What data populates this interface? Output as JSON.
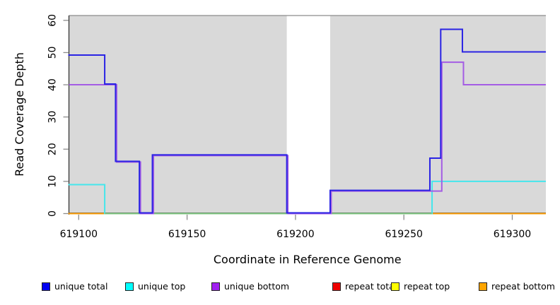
{
  "chart_data": {
    "type": "line",
    "subtype": "step",
    "title": "",
    "xlabel": "Coordinate in Reference Genome",
    "ylabel": "Read Coverage Depth",
    "x_domain": [
      619095.5,
      619315.5
    ],
    "y_domain": [
      0,
      61.5
    ],
    "x_ticks": [
      619100,
      619150,
      619200,
      619250,
      619300
    ],
    "y_ticks": [
      0,
      10,
      20,
      30,
      40,
      50,
      60
    ],
    "grid": false,
    "legend_position": "bottom",
    "plot_bg_color": "#D9D9D9",
    "top_border_color": "#8C8C8C",
    "axis_line_color": "#333333",
    "tick_color": "#8C8C8C",
    "no_data_region": {
      "x_start": 619196,
      "x_end": 619216,
      "fill": "#FFFFFF"
    },
    "series": [
      {
        "name": "unique total",
        "line_color": "#2A23E4",
        "legend_color": "#0000F2",
        "steps": [
          [
            619095,
            49
          ],
          [
            619112,
            40
          ],
          [
            619117,
            16
          ],
          [
            619128,
            0
          ],
          [
            619134,
            18
          ],
          [
            619196,
            0
          ],
          [
            619216,
            7
          ],
          [
            619262,
            17
          ],
          [
            619267,
            57
          ],
          [
            619277,
            50
          ]
        ]
      },
      {
        "name": "unique top",
        "line_color": "#45E6EC",
        "legend_color": "#00FFFF",
        "steps": [
          [
            619095,
            9
          ],
          [
            619112,
            0
          ],
          [
            619263,
            10
          ]
        ]
      },
      {
        "name": "unique bottom",
        "line_color": "#A45CE4",
        "legend_color": "#A020F0",
        "steps": [
          [
            619095,
            40
          ],
          [
            619117,
            16
          ],
          [
            619128,
            0
          ],
          [
            619134,
            18
          ],
          [
            619196,
            0
          ],
          [
            619216,
            7
          ],
          [
            619267,
            47
          ],
          [
            619277,
            40
          ]
        ]
      },
      {
        "name": "repeat total",
        "line_color": "#DD0000",
        "legend_color": "#EE0000",
        "steps": [
          [
            619095,
            0
          ]
        ]
      },
      {
        "name": "repeat top",
        "line_color": "#F5F500",
        "legend_color": "#FFFF00",
        "steps": [
          [
            619095,
            0
          ]
        ]
      },
      {
        "name": "repeat bottom",
        "line_color": "#FFA008",
        "legend_color": "#FFA500",
        "steps": [
          [
            619095,
            0
          ]
        ]
      }
    ],
    "overlap_segment": {
      "x_start": 619112,
      "x_end": 619263,
      "value": 0,
      "color": "#80CA82",
      "note": "unique top and repeat bottom both at depth 0 render blended green"
    }
  },
  "legend": {
    "items": [
      {
        "label": "unique total",
        "color": "#0000F2"
      },
      {
        "label": "unique top",
        "color": "#00FFFF"
      },
      {
        "label": "unique bottom",
        "color": "#A020F0"
      },
      {
        "label": "repeat total",
        "color": "#EE0000"
      },
      {
        "label": "repeat top",
        "color": "#FFFF00"
      },
      {
        "label": "repeat bottom",
        "color": "#FFA500"
      }
    ]
  }
}
